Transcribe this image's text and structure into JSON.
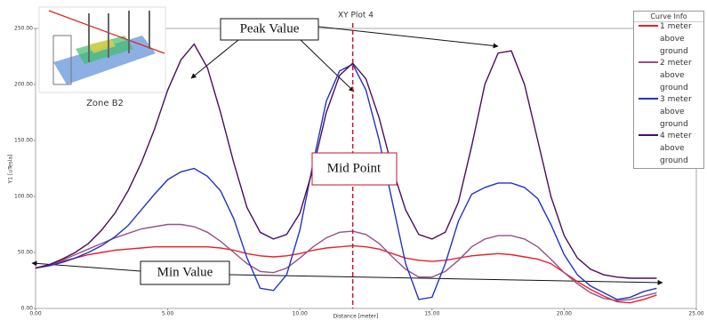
{
  "chart_data": {
    "type": "line",
    "title": "XY Plot 4",
    "x_label": "Distance [meter]",
    "y_label": "Y1 [uTesla]",
    "x": [
      0,
      0.5,
      1,
      1.5,
      2,
      2.5,
      3,
      3.5,
      4,
      4.5,
      5,
      5.5,
      6,
      6.5,
      7,
      7.5,
      8,
      8.5,
      9,
      9.5,
      10,
      10.5,
      11,
      11.5,
      12,
      12.5,
      13,
      13.5,
      14,
      14.5,
      15,
      15.5,
      16,
      16.5,
      17,
      17.5,
      18,
      18.5,
      19,
      19.5,
      20,
      20.5,
      21,
      21.5,
      22,
      22.5,
      23,
      23.5
    ],
    "series": [
      {
        "name": "1 meter above ground",
        "color": "#e8202a",
        "values": [
          36,
          39,
          42,
          45,
          48,
          50,
          52,
          53,
          54,
          55,
          55,
          55,
          55,
          55,
          54,
          52,
          49,
          47,
          46,
          47,
          49,
          52,
          54,
          55,
          56,
          55,
          53,
          49,
          45,
          43,
          42,
          43,
          45,
          47,
          48,
          49,
          48,
          46,
          44,
          40,
          32,
          24,
          17,
          11,
          6,
          5,
          8,
          12
        ]
      },
      {
        "name": "2 meter above ground",
        "color": "#9a4f86",
        "values": [
          36,
          39,
          43,
          48,
          53,
          58,
          63,
          67,
          71,
          73,
          75,
          75,
          73,
          68,
          60,
          50,
          40,
          33,
          32,
          36,
          45,
          55,
          63,
          68,
          69,
          66,
          58,
          46,
          35,
          28,
          28,
          33,
          43,
          55,
          62,
          65,
          65,
          62,
          55,
          44,
          32,
          22,
          14,
          9,
          7,
          8,
          11,
          14
        ]
      },
      {
        "name": "3 meter above ground",
        "color": "#2233c8",
        "values": [
          36,
          38,
          41,
          45,
          50,
          56,
          64,
          74,
          88,
          102,
          115,
          122,
          125,
          118,
          105,
          80,
          45,
          18,
          16,
          30,
          70,
          130,
          185,
          212,
          218,
          195,
          150,
          95,
          40,
          8,
          10,
          40,
          78,
          102,
          108,
          112,
          112,
          108,
          98,
          75,
          48,
          30,
          20,
          14,
          8,
          10,
          15,
          18
        ]
      },
      {
        "name": "4 meter above ground",
        "color": "#4a0f5c",
        "values": [
          36,
          39,
          44,
          50,
          58,
          70,
          85,
          105,
          130,
          160,
          195,
          222,
          236,
          215,
          175,
          130,
          90,
          68,
          62,
          66,
          85,
          125,
          175,
          208,
          219,
          205,
          170,
          125,
          88,
          66,
          62,
          68,
          95,
          145,
          200,
          228,
          230,
          200,
          150,
          100,
          65,
          45,
          35,
          30,
          28,
          27,
          27,
          27
        ]
      }
    ],
    "xlim": [
      0,
      25
    ],
    "ylim": [
      0,
      250
    ],
    "xticks": [
      {
        "value": 0,
        "label": "0.00"
      },
      {
        "value": 5,
        "label": "5.00"
      },
      {
        "value": 10,
        "label": "10.00"
      },
      {
        "value": 15,
        "label": "15.00"
      },
      {
        "value": 20,
        "label": "20.00"
      },
      {
        "value": 25,
        "label": "25.00"
      }
    ],
    "yticks": [
      {
        "value": 0,
        "label": "0.00"
      },
      {
        "value": 50,
        "label": "50.00"
      },
      {
        "value": 100,
        "label": "100.00"
      },
      {
        "value": 150,
        "label": "150.00"
      },
      {
        "value": 200,
        "label": "200.00"
      },
      {
        "value": 250,
        "label": "250.00"
      }
    ],
    "grid": false,
    "legend_title": "Curve Info",
    "vline": {
      "x": 12,
      "color": "#c8102e"
    },
    "annotations": {
      "peak": "Peak Value",
      "mid": "Mid Point",
      "min": "Min Value",
      "zone": "Zone B2"
    }
  }
}
